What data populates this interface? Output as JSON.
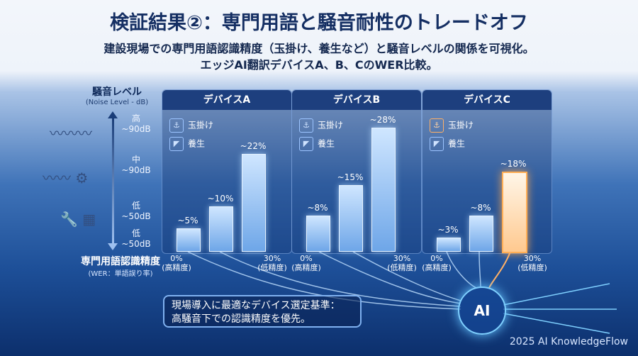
{
  "title": "検証結果②：専門用語と騒音耐性のトレードオフ",
  "subtitle_line1": "建設現場での専門用語認識精度（玉掛け、養生など）と騒音レベルの関係を可視化。",
  "subtitle_line2": "エッジAI翻訳デバイスA、B、CのWER比較。",
  "y_axis": {
    "title": "騒音レベル",
    "subtitle": "(Noise Level - dB)",
    "levels": [
      {
        "label": "高",
        "value": "~90dB"
      },
      {
        "label": "中",
        "value": "~90dB"
      },
      {
        "label": "低",
        "value": "~50dB"
      },
      {
        "label": "低",
        "value": "~50dB"
      }
    ]
  },
  "x_axis": {
    "title": "専門用語認識精度",
    "subtitle": "(WER：単語誤り率)",
    "tick_left": "0%",
    "tick_left_sub": "(高精度)",
    "tick_right": "30%",
    "tick_right_sub": "(低精度)"
  },
  "legend": {
    "tamakake": "玉掛け",
    "yojo": "養生"
  },
  "callout_line1": "現場導入に最適なデバイス選定基準：",
  "callout_line2": "高騒音下での認識精度を優先。",
  "ai_label": "AI",
  "footer": "2025 AI KnowledgeFlow",
  "icons": [
    "sound-wave-icon",
    "robot-arm-icon",
    "drill-icon",
    "brain-chip-icon"
  ],
  "colors": {
    "accent_blue": "#6ea6e8",
    "highlight_orange": "#ffae55",
    "title_navy": "#152f63"
  },
  "chart_data": {
    "type": "bar",
    "categories": [
      "低",
      "中",
      "高"
    ],
    "series": [
      {
        "name": "デバイスA",
        "values": [
          5,
          10,
          22
        ],
        "labels": [
          "~5%",
          "~10%",
          "~22%"
        ]
      },
      {
        "name": "デバイスB",
        "values": [
          8,
          15,
          28
        ],
        "labels": [
          "~8%",
          "~15%",
          "~28%"
        ]
      },
      {
        "name": "デバイスC",
        "values": [
          3,
          8,
          18
        ],
        "labels": [
          "~3%",
          "~8%",
          "~18%"
        ]
      }
    ],
    "ylim": [
      0,
      30
    ],
    "ylabel": "専門用語認識精度"
  }
}
